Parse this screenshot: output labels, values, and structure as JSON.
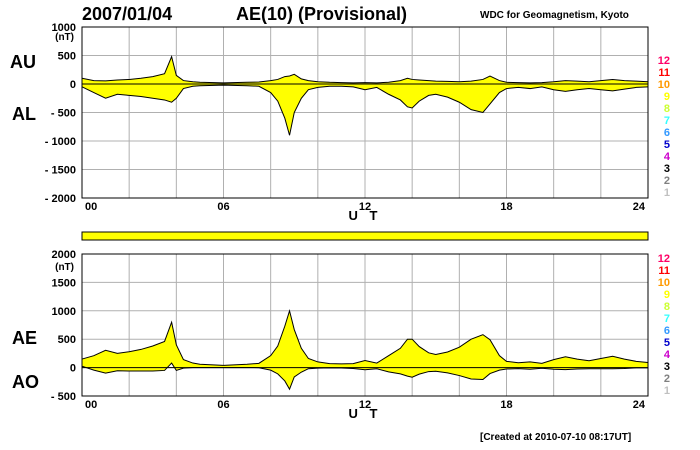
{
  "header": {
    "date": "2007/01/04",
    "title": "AE(10) (Provisional)",
    "source": "WDC for Geomagnetism, Kyoto"
  },
  "footer": "[Created at 2010-07-10 08:17UT]",
  "level_labels": [
    "12",
    "11",
    "10",
    "9",
    "8",
    "7",
    "6",
    "5",
    "4",
    "3",
    "2",
    "1"
  ],
  "level_colors": [
    "#ff0066",
    "#ff0000",
    "#ff9900",
    "#ffff00",
    "#ccff33",
    "#33ffff",
    "#3399ff",
    "#0000cc",
    "#cc00cc",
    "#000000",
    "#808080",
    "#c0c0c0"
  ],
  "colors": {
    "fill": "#ffff00",
    "line": "#000000",
    "grid": "#b0b0b0",
    "bar": "#ffff00"
  },
  "chart_data": [
    {
      "type": "area",
      "title": "",
      "panel_labels": [
        "AU",
        "AL"
      ],
      "yunit": "(nT)",
      "xlabel": "U T",
      "xticks": [
        "00",
        "06",
        "12",
        "18",
        "24"
      ],
      "yticks": [
        "1000",
        "500",
        "0",
        "- 500",
        "- 1000",
        "- 1500",
        "- 2000"
      ],
      "ytick_values": [
        1000,
        500,
        0,
        -500,
        -1000,
        -1500,
        -2000
      ],
      "ylim": [
        -2000,
        1000
      ],
      "xlim": [
        0,
        24
      ],
      "grid": true,
      "series": [
        {
          "name": "AU",
          "x": [
            0,
            0.5,
            1,
            1.5,
            2,
            2.5,
            3,
            3.5,
            3.8,
            4,
            4.3,
            4.7,
            5,
            6,
            7,
            7.5,
            8,
            8.3,
            8.6,
            8.8,
            9,
            9.3,
            9.6,
            10,
            10.5,
            11,
            11.5,
            12,
            12.5,
            13,
            13.5,
            13.8,
            14,
            14.3,
            14.7,
            15,
            15.5,
            16,
            16.5,
            17,
            17.3,
            17.7,
            18,
            18.5,
            19,
            19.5,
            20,
            20.5,
            21,
            21.5,
            22,
            22.5,
            23,
            23.5,
            24
          ],
          "y": [
            100,
            60,
            55,
            70,
            80,
            100,
            130,
            180,
            480,
            150,
            60,
            40,
            30,
            20,
            30,
            35,
            60,
            80,
            130,
            140,
            170,
            90,
            60,
            40,
            30,
            25,
            20,
            25,
            20,
            30,
            60,
            100,
            80,
            70,
            60,
            50,
            45,
            40,
            50,
            80,
            140,
            60,
            30,
            25,
            20,
            25,
            40,
            60,
            50,
            40,
            60,
            80,
            60,
            50,
            40
          ]
        },
        {
          "name": "AL",
          "x": [
            0,
            0.5,
            1,
            1.5,
            2,
            2.5,
            3,
            3.5,
            3.8,
            4,
            4.3,
            4.7,
            5,
            6,
            7,
            7.5,
            8,
            8.3,
            8.6,
            8.8,
            9,
            9.3,
            9.6,
            10,
            10.5,
            11,
            11.5,
            12,
            12.5,
            13,
            13.5,
            13.8,
            14,
            14.3,
            14.7,
            15,
            15.5,
            16,
            16.5,
            17,
            17.3,
            17.7,
            18,
            18.5,
            19,
            19.5,
            20,
            20.5,
            21,
            21.5,
            22,
            22.5,
            23,
            23.5,
            24
          ],
          "y": [
            -50,
            -150,
            -250,
            -180,
            -200,
            -220,
            -250,
            -280,
            -320,
            -250,
            -80,
            -40,
            -30,
            -20,
            -30,
            -40,
            -150,
            -300,
            -600,
            -900,
            -500,
            -250,
            -100,
            -60,
            -40,
            -40,
            -50,
            -100,
            -60,
            -180,
            -280,
            -400,
            -420,
            -300,
            -200,
            -180,
            -230,
            -320,
            -450,
            -500,
            -350,
            -150,
            -80,
            -60,
            -80,
            -50,
            -100,
            -130,
            -100,
            -80,
            -100,
            -120,
            -90,
            -60,
            -50
          ]
        }
      ]
    },
    {
      "type": "area",
      "title": "",
      "panel_labels": [
        "AE",
        "AO"
      ],
      "yunit": "(nT)",
      "xlabel": "U T",
      "xticks": [
        "00",
        "06",
        "12",
        "18",
        "24"
      ],
      "yticks": [
        "2000",
        "1500",
        "1000",
        "500",
        "0",
        "- 500"
      ],
      "ytick_values": [
        2000,
        1500,
        1000,
        500,
        0,
        -500
      ],
      "ylim": [
        -500,
        2000
      ],
      "xlim": [
        0,
        24
      ],
      "grid": true,
      "series": [
        {
          "name": "AE",
          "x": [
            0,
            0.5,
            1,
            1.5,
            2,
            2.5,
            3,
            3.5,
            3.8,
            4,
            4.3,
            4.7,
            5,
            6,
            7,
            7.5,
            8,
            8.3,
            8.6,
            8.8,
            9,
            9.3,
            9.6,
            10,
            10.5,
            11,
            11.5,
            12,
            12.5,
            13,
            13.5,
            13.8,
            14,
            14.3,
            14.7,
            15,
            15.5,
            16,
            16.5,
            17,
            17.3,
            17.7,
            18,
            18.5,
            19,
            19.5,
            20,
            20.5,
            21,
            21.5,
            22,
            22.5,
            23,
            23.5,
            24
          ],
          "y": [
            150,
            210,
            305,
            250,
            280,
            320,
            380,
            460,
            800,
            400,
            140,
            80,
            60,
            40,
            60,
            75,
            210,
            380,
            730,
            1000,
            670,
            340,
            160,
            100,
            70,
            65,
            70,
            125,
            80,
            210,
            340,
            500,
            500,
            370,
            260,
            230,
            275,
            360,
            500,
            580,
            490,
            210,
            110,
            85,
            100,
            75,
            140,
            190,
            150,
            120,
            160,
            200,
            150,
            110,
            90
          ]
        },
        {
          "name": "AO",
          "x": [
            0,
            0.5,
            1,
            1.5,
            2,
            2.5,
            3,
            3.5,
            3.8,
            4,
            4.3,
            4.7,
            5,
            6,
            7,
            7.5,
            8,
            8.3,
            8.6,
            8.8,
            9,
            9.3,
            9.6,
            10,
            10.5,
            11,
            11.5,
            12,
            12.5,
            13,
            13.5,
            13.8,
            14,
            14.3,
            14.7,
            15,
            15.5,
            16,
            16.5,
            17,
            17.3,
            17.7,
            18,
            18.5,
            19,
            19.5,
            20,
            20.5,
            21,
            21.5,
            22,
            22.5,
            23,
            23.5,
            24
          ],
          "y": [
            25,
            -45,
            -97,
            -55,
            -60,
            -60,
            -60,
            -50,
            80,
            -50,
            -10,
            0,
            0,
            0,
            0,
            -2,
            -45,
            -110,
            -235,
            -380,
            -165,
            -80,
            -20,
            -10,
            -5,
            -7,
            -15,
            -37,
            -20,
            -75,
            -110,
            -150,
            -170,
            -115,
            -70,
            -65,
            -92,
            -140,
            -200,
            -210,
            -105,
            -45,
            -25,
            -17,
            -30,
            -12,
            -30,
            -35,
            -25,
            -20,
            -20,
            -20,
            -15,
            -5,
            -5
          ]
        }
      ]
    }
  ]
}
